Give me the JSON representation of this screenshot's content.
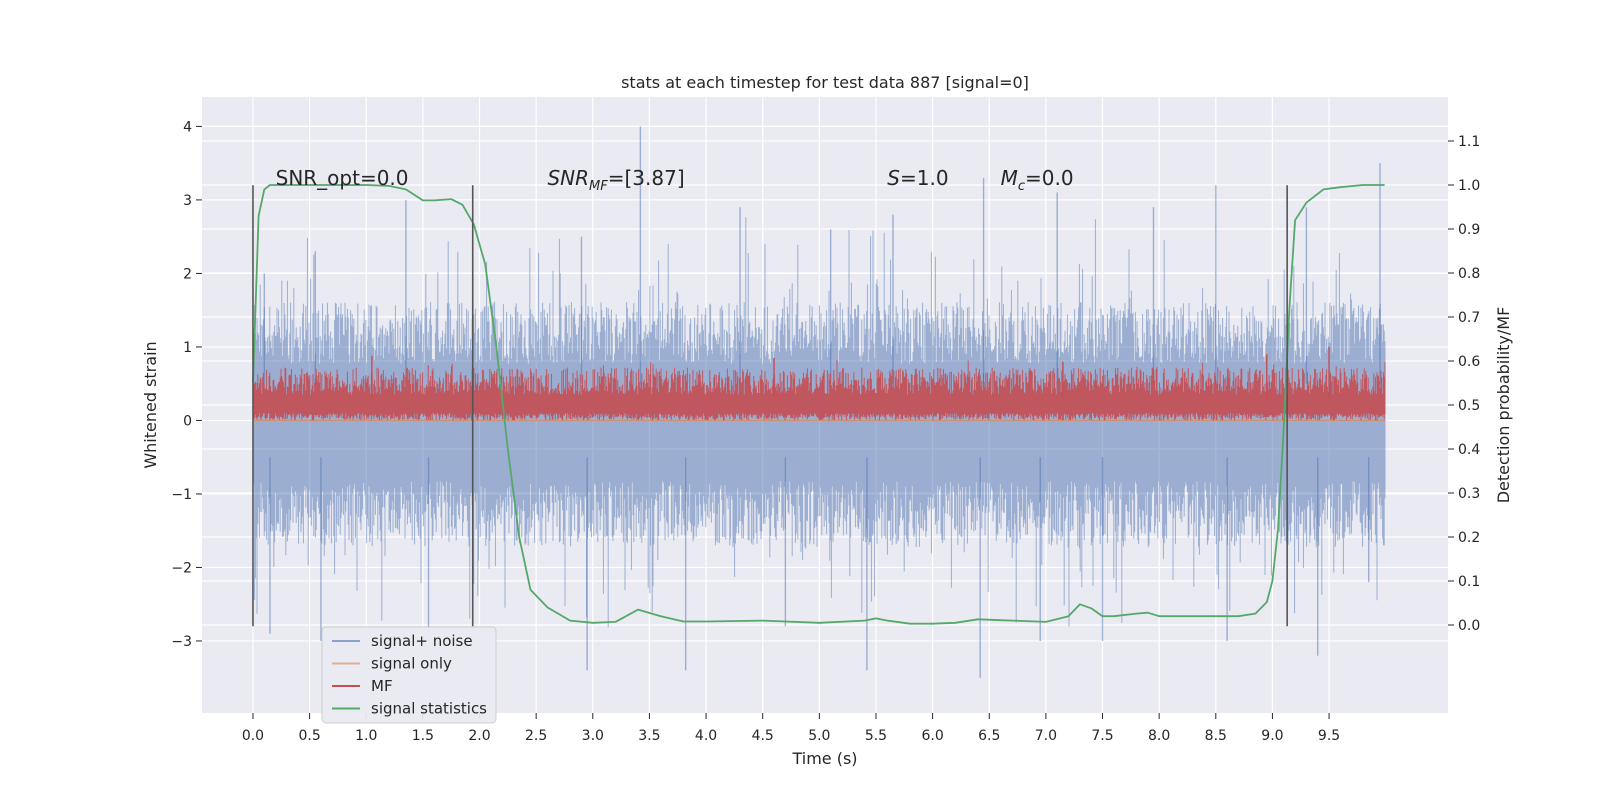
{
  "chart_data": {
    "type": "line",
    "title": "stats at each timestep for test data 887 [signal=0]",
    "xlabel": "Time (s)",
    "ylabel_left": "Whitened strain",
    "ylabel_right": "Detection probability/MF",
    "xlim": [
      -0.45,
      10.55
    ],
    "ylim_left": [
      -3.98,
      4.4
    ],
    "ylim_right": [
      -0.2,
      1.2
    ],
    "x_ticks": [
      "0.0",
      "0.5",
      "1.0",
      "1.5",
      "2.0",
      "2.5",
      "3.0",
      "3.5",
      "4.0",
      "4.5",
      "5.0",
      "5.5",
      "6.0",
      "6.5",
      "7.0",
      "7.5",
      "8.0",
      "8.5",
      "9.0",
      "9.5"
    ],
    "y_ticks_left": [
      "4",
      "3",
      "2",
      "1",
      "0",
      "−1",
      "−2",
      "−3"
    ],
    "y_ticks_right": [
      "1.1",
      "1.0",
      "0.9",
      "0.8",
      "0.7",
      "0.6",
      "0.5",
      "0.4",
      "0.3",
      "0.2",
      "0.1",
      "0.0"
    ],
    "grid": true,
    "legend_position": "lower-left",
    "colors": {
      "signal_noise": "#4c72b0",
      "signal_only": "#dd8452",
      "mf": "#c44e52",
      "signal_statistics": "#55a868",
      "background": "#eaeaf2",
      "grid": "#ffffff",
      "vline": "#555555"
    },
    "annotations": [
      {
        "text": "SNR_opt=0.0",
        "x": 0.2
      },
      {
        "text": "SNR",
        "sub": "MF",
        "suffix": "=[3.87]",
        "x": 2.6,
        "italic": true
      },
      {
        "text": "S",
        "suffix": "=1.0",
        "x": 5.6,
        "italic": true
      },
      {
        "text": "M",
        "sub": "c",
        "suffix": "=0.0",
        "x": 6.6,
        "italic": true
      }
    ],
    "vertical_markers_x": [
      0.0,
      1.94,
      9.13
    ],
    "series": [
      {
        "name": "signal+ noise",
        "envelope": true,
        "x_range": [
          0.0,
          10.0
        ],
        "typical_band": [
          -1.5,
          1.4
        ],
        "peaks_high": [
          [
            0.1,
            2.0
          ],
          [
            0.55,
            2.3
          ],
          [
            1.35,
            3.0
          ],
          [
            2.9,
            2.5
          ],
          [
            3.42,
            4.0
          ],
          [
            4.3,
            2.9
          ],
          [
            5.1,
            2.6
          ],
          [
            5.65,
            2.8
          ],
          [
            6.45,
            3.3
          ],
          [
            7.1,
            3.1
          ],
          [
            7.95,
            2.9
          ],
          [
            8.5,
            3.2
          ],
          [
            9.3,
            2.9
          ],
          [
            9.95,
            3.5
          ]
        ],
        "peaks_low": [
          [
            0.15,
            -2.9
          ],
          [
            0.6,
            -3.0
          ],
          [
            1.55,
            -2.9
          ],
          [
            2.95,
            -3.4
          ],
          [
            3.82,
            -3.4
          ],
          [
            4.7,
            -2.8
          ],
          [
            5.42,
            -3.4
          ],
          [
            6.42,
            -3.5
          ],
          [
            6.95,
            -3.0
          ],
          [
            7.5,
            -3.0
          ],
          [
            8.6,
            -3.0
          ],
          [
            9.4,
            -3.2
          ],
          [
            9.85,
            -2.2
          ]
        ]
      },
      {
        "name": "signal only",
        "x": [
          0.0,
          10.0
        ],
        "y": [
          0.0,
          0.0
        ]
      },
      {
        "name": "MF",
        "envelope": true,
        "x_range": [
          0.0,
          10.0
        ],
        "band": [
          0.0,
          0.72
        ],
        "peaks_high": [
          [
            1.05,
            0.88
          ],
          [
            4.6,
            0.85
          ],
          [
            7.15,
            0.8
          ],
          [
            8.95,
            0.9
          ],
          [
            9.5,
            1.0
          ]
        ]
      },
      {
        "name": "signal statistics",
        "x": [
          0.0,
          0.05,
          0.1,
          0.15,
          0.2,
          0.3,
          0.5,
          0.8,
          1.0,
          1.2,
          1.35,
          1.5,
          1.6,
          1.75,
          1.85,
          1.95,
          2.05,
          2.15,
          2.25,
          2.35,
          2.45,
          2.6,
          2.8,
          3.0,
          3.2,
          3.4,
          3.6,
          3.8,
          4.0,
          4.5,
          5.0,
          5.4,
          5.5,
          5.6,
          5.8,
          6.0,
          6.2,
          6.4,
          6.6,
          6.8,
          7.0,
          7.2,
          7.3,
          7.4,
          7.5,
          7.6,
          7.8,
          7.9,
          8.0,
          8.2,
          8.5,
          8.7,
          8.85,
          8.95,
          9.0,
          9.05,
          9.1,
          9.15,
          9.2,
          9.3,
          9.45,
          9.6,
          9.8,
          9.99
        ],
        "y": [
          0.55,
          0.93,
          0.99,
          1.0,
          1.0,
          1.0,
          1.0,
          1.0,
          1.0,
          0.998,
          0.99,
          0.965,
          0.965,
          0.968,
          0.955,
          0.91,
          0.82,
          0.63,
          0.4,
          0.2,
          0.08,
          0.04,
          0.01,
          0.005,
          0.007,
          0.035,
          0.02,
          0.008,
          0.008,
          0.01,
          0.005,
          0.01,
          0.015,
          0.01,
          0.003,
          0.003,
          0.005,
          0.013,
          0.011,
          0.009,
          0.007,
          0.02,
          0.047,
          0.038,
          0.02,
          0.02,
          0.026,
          0.028,
          0.02,
          0.02,
          0.02,
          0.02,
          0.026,
          0.052,
          0.1,
          0.22,
          0.45,
          0.72,
          0.92,
          0.96,
          0.99,
          0.995,
          1.0,
          1.0
        ]
      }
    ]
  }
}
